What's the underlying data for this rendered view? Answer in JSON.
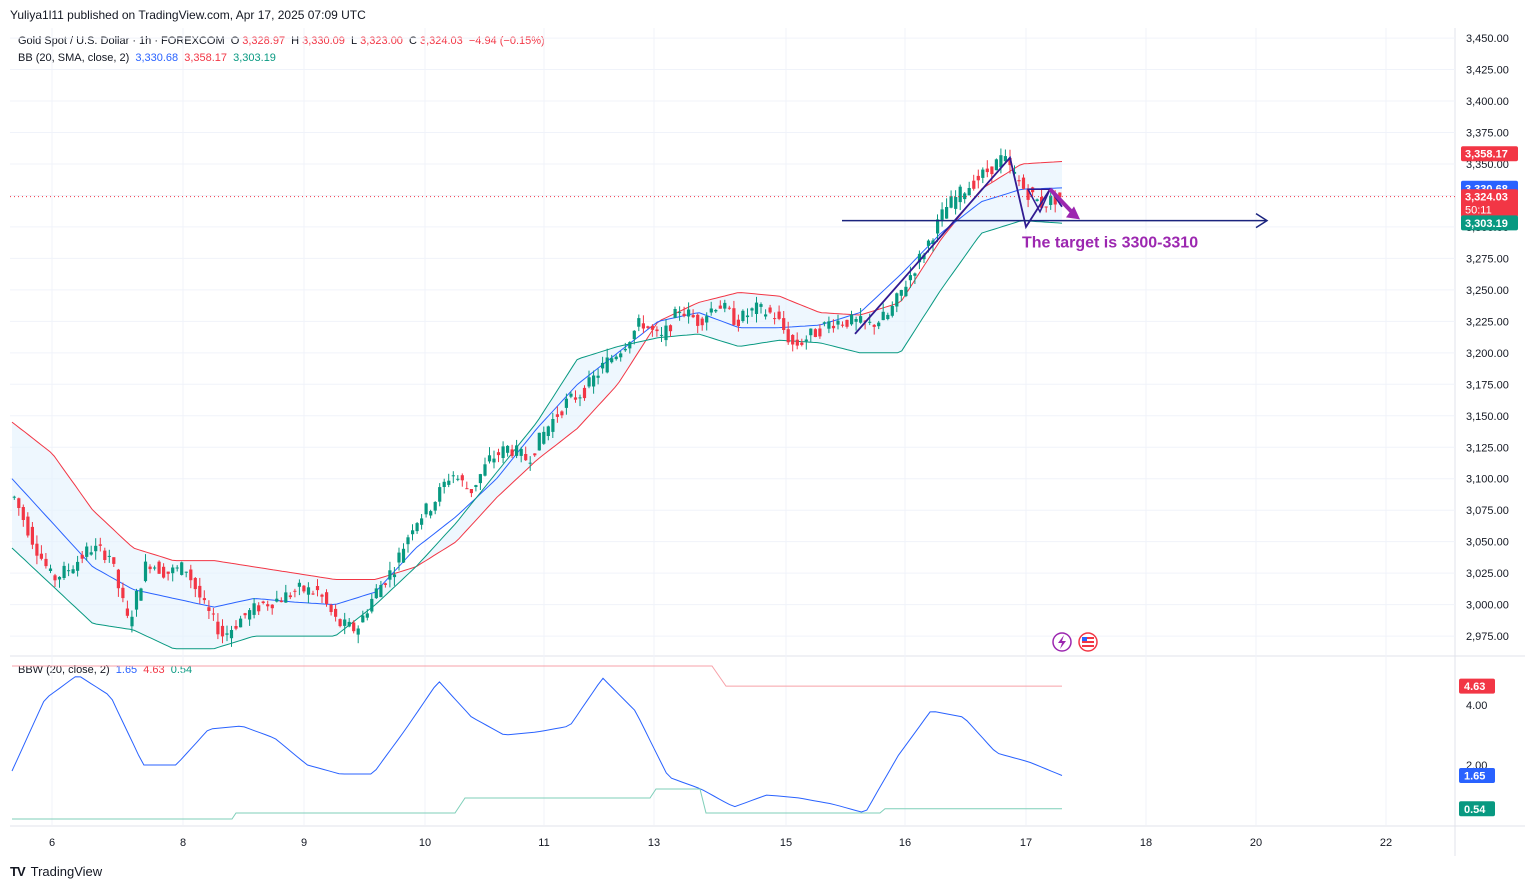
{
  "publisher": "Yuliya1l11 published on TradingView.com, Apr 17, 2025 07:09 UTC",
  "legend": {
    "symbol": "Gold Spot / U.S. Dollar · 1h · FOREXCOM",
    "o_label": "O",
    "o": "3,328.97",
    "h_label": "H",
    "h": "3,330.09",
    "l_label": "L",
    "l": "3,323.00",
    "c_label": "C",
    "c": "3,324.03",
    "change": "−4.94 (−0.15%)",
    "bb_label": "BB (20, SMA, close, 2)",
    "bb_basis": "3,330.68",
    "bb_upper": "3,358.17",
    "bb_lower": "3,303.19",
    "bbw_label": "BBW (20, close, 2)",
    "bbw_value": "1.65",
    "bbw_high": "4.63",
    "bbw_low": "0.54"
  },
  "footer": {
    "brand": "TradingView",
    "logo": "TV"
  },
  "colors": {
    "up": "#089981",
    "down": "#f23645",
    "basis": "#2962ff",
    "upper": "#f23645",
    "lower": "#089981",
    "fill": "#e3f2fd",
    "annotation": "#9c27b0",
    "pattern": "#311b92",
    "target_line": "#1a237e"
  },
  "chart_data": [
    {
      "type": "candlestick",
      "title": "Gold Spot / U.S. Dollar · 1h · FOREXCOM",
      "y_ticks": [
        "3,450.00",
        "3,425.00",
        "3,400.00",
        "3,375.00",
        "3,350.00",
        "3,325.00",
        "3,300.00",
        "3,275.00",
        "3,250.00",
        "3,225.00",
        "3,200.00",
        "3,175.00",
        "3,150.00",
        "3,125.00",
        "3,100.00",
        "3,075.00",
        "3,050.00",
        "3,025.00",
        "3,000.00",
        "2,975.00"
      ],
      "ylim": [
        2960,
        3458
      ],
      "x_ticks": [
        "6",
        "8",
        "9",
        "10",
        "11",
        "13",
        "15",
        "16",
        "17",
        "18",
        "20",
        "22"
      ],
      "price_tags": [
        {
          "label": "3,358.17",
          "value": 3358.17,
          "color": "#f23645"
        },
        {
          "label": "3,330.68",
          "value": 3330.68,
          "color": "#2962ff"
        },
        {
          "label": "3,324.03",
          "sub": "50:11",
          "value": 3324.03,
          "color": "#f23645"
        },
        {
          "label": "3,303.19",
          "value": 3303.19,
          "color": "#089981"
        }
      ],
      "close_profile": [
        3085,
        3050,
        3020,
        3030,
        3045,
        3040,
        2985,
        3035,
        3025,
        3030,
        2998,
        2975,
        2990,
        3000,
        3005,
        3012,
        3010,
        2985,
        2980,
        3010,
        3030,
        3065,
        3080,
        3105,
        3090,
        3115,
        3125,
        3115,
        3140,
        3160,
        3170,
        3190,
        3205,
        3225,
        3210,
        3235,
        3225,
        3240,
        3225,
        3235,
        3230,
        3205,
        3215,
        3225,
        3225,
        3222,
        3230,
        3258,
        3285,
        3315,
        3330,
        3342,
        3355,
        3332,
        3318,
        3324
      ],
      "bb_upper_profile": [
        3145,
        3120,
        3075,
        3045,
        3035,
        3035,
        3030,
        3025,
        3020,
        3020,
        3030,
        3050,
        3085,
        3115,
        3140,
        3175,
        3225,
        3240,
        3248,
        3245,
        3232,
        3230,
        3240,
        3290,
        3330,
        3350,
        3352
      ],
      "bb_basis_profile": [
        3100,
        3065,
        3030,
        3012,
        3005,
        2998,
        3005,
        3002,
        3000,
        3010,
        3045,
        3070,
        3100,
        3140,
        3175,
        3200,
        3225,
        3232,
        3220,
        3220,
        3222,
        3232,
        3262,
        3295,
        3320,
        3330,
        3331
      ],
      "bb_lower_profile": [
        3045,
        3015,
        2985,
        2980,
        2965,
        2965,
        2975,
        2975,
        2975,
        3000,
        3030,
        3065,
        3105,
        3145,
        3195,
        3205,
        3212,
        3215,
        3205,
        3210,
        3208,
        3200,
        3200,
        3250,
        3295,
        3305,
        3303
      ],
      "annotation": "The target is 3300-3310",
      "target_level": 3305
    },
    {
      "type": "line",
      "title": "BBW (20, close, 2)",
      "y_ticks": [
        "4.00",
        "2.00"
      ],
      "ylim": [
        0,
        5.6
      ],
      "bbw_profile": [
        1.8,
        4.2,
        5.0,
        4.3,
        2.0,
        2.0,
        3.2,
        3.3,
        2.9,
        2.0,
        1.7,
        1.7,
        3.2,
        4.8,
        3.6,
        3.0,
        3.1,
        3.3,
        4.9,
        3.8,
        1.6,
        1.2,
        0.6,
        1.0,
        0.9,
        0.7,
        0.4,
        2.3,
        3.8,
        3.6,
        2.4,
        2.1,
        1.65
      ],
      "high_profile": [
        4.63,
        4.63,
        4.63,
        4.63,
        4.63,
        4.63,
        4.63,
        4.63,
        4.63,
        4.63,
        4.63
      ],
      "low_profile": [
        0.54,
        0.54,
        0.54,
        0.54,
        0.54,
        0.54,
        0.54,
        0.54,
        0.54,
        0.54,
        0.54
      ],
      "price_tags": [
        {
          "label": "4.63",
          "value": 4.63,
          "color": "#f23645"
        },
        {
          "label": "1.65",
          "value": 1.65,
          "color": "#2962ff"
        },
        {
          "label": "0.54",
          "value": 0.54,
          "color": "#089981"
        }
      ]
    }
  ]
}
